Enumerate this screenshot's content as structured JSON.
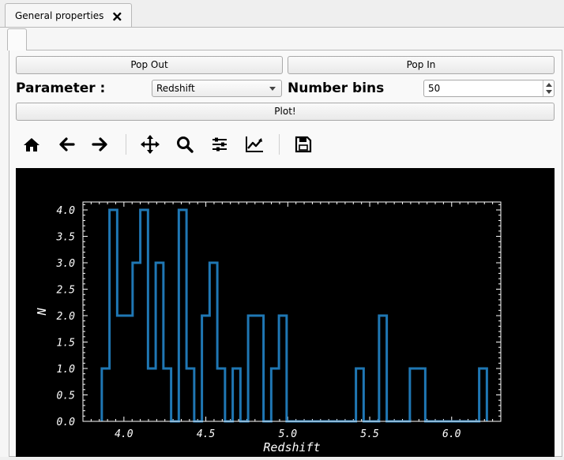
{
  "tab": {
    "title": "General properties",
    "close_glyph": "🗙"
  },
  "buttons": {
    "pop_out": "Pop Out",
    "pop_in": "Pop In",
    "plot": "Plot!"
  },
  "parameter": {
    "label": "Parameter :",
    "selected": "Redshift"
  },
  "bins": {
    "label": "Number bins",
    "value": "50"
  },
  "toolbar": [
    "home-icon",
    "back-arrow-icon",
    "forward-arrow-icon",
    "pan-icon",
    "zoom-icon",
    "configure-subplots-icon",
    "edit-axis-icon",
    "save-icon"
  ],
  "colors": {
    "line": "#1f77b4",
    "background": "#000000",
    "axes": "#ffffff"
  },
  "chart_data": {
    "type": "line",
    "style": "step-histogram",
    "title": "",
    "xlabel": "Redshift",
    "ylabel": "N",
    "xlim": [
      3.75,
      6.3
    ],
    "ylim": [
      0.0,
      4.15
    ],
    "xticks": [
      "4.0",
      "4.5",
      "5.0",
      "5.5",
      "6.0"
    ],
    "yticks": [
      "0.0",
      "0.5",
      "1.0",
      "1.5",
      "2.0",
      "2.5",
      "3.0",
      "3.5",
      "4.0"
    ],
    "bin_edges": [
      3.865,
      3.912,
      3.959,
      4.006,
      4.053,
      4.1,
      4.147,
      4.194,
      4.241,
      4.288,
      4.335,
      4.382,
      4.429,
      4.476,
      4.523,
      4.57,
      4.617,
      4.664,
      4.711,
      4.758,
      4.805,
      4.852,
      4.899,
      4.946,
      4.993,
      5.04,
      5.087,
      5.134,
      5.181,
      5.228,
      5.275,
      5.322,
      5.369,
      5.416,
      5.463,
      5.51,
      5.557,
      5.604,
      5.651,
      5.698,
      5.745,
      5.792,
      5.839,
      5.886,
      5.933,
      5.98,
      6.027,
      6.074,
      6.121,
      6.168,
      6.215
    ],
    "counts": [
      1,
      4,
      2,
      2,
      3,
      4,
      1,
      3,
      1,
      0,
      4,
      1,
      0,
      2,
      3,
      1,
      0,
      1,
      0,
      2,
      2,
      0,
      1,
      2,
      0,
      0,
      0,
      0,
      0,
      0,
      0,
      0,
      0,
      1,
      0,
      0,
      2,
      0,
      0,
      0,
      1,
      1,
      0,
      0,
      0,
      0,
      0,
      0,
      0,
      1
    ]
  }
}
